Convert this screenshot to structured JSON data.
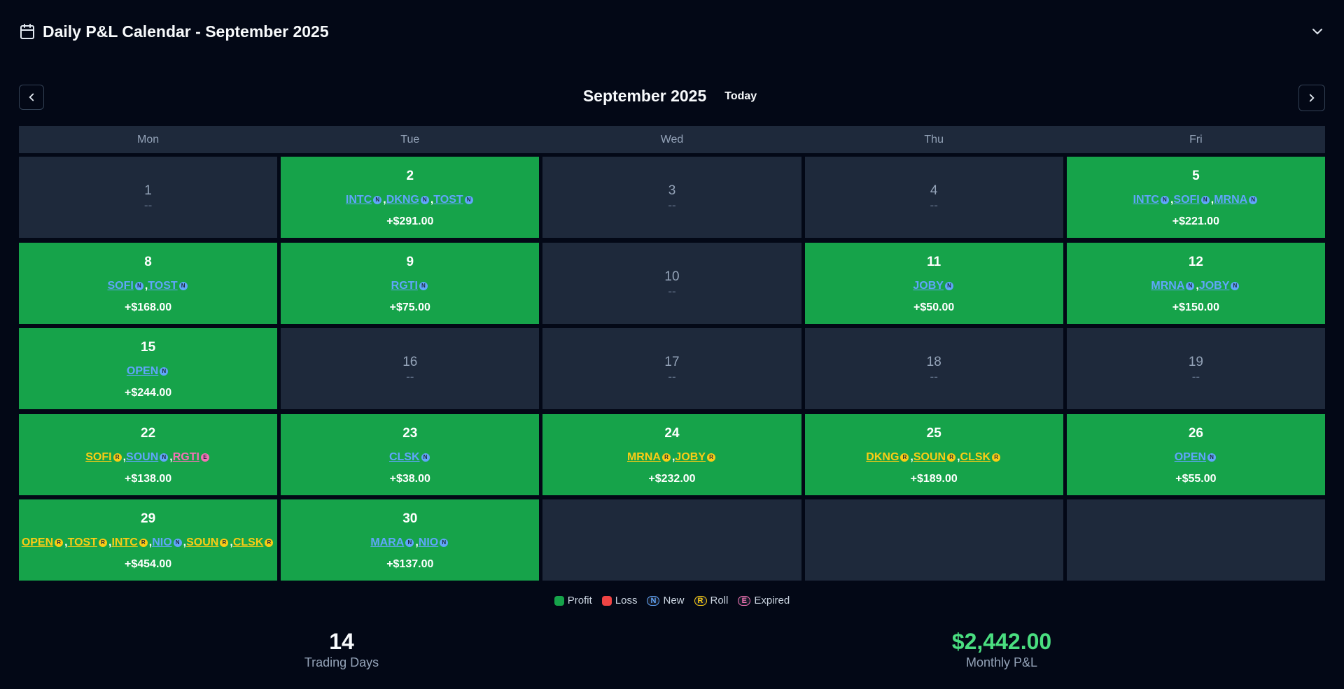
{
  "header": {
    "title": "Daily P&L Calendar - September 2025"
  },
  "calendar": {
    "month": "September 2025",
    "today_button": "Today",
    "weekdays": [
      "Mon",
      "Tue",
      "Wed",
      "Thu",
      "Fri"
    ],
    "separator": ",",
    "weeks": [
      {
        "days": [
          {
            "day": 1,
            "pnl": "--"
          },
          {
            "day": 2,
            "tickers": [
              {
                "symbol": "INTC",
                "tag": "N"
              },
              {
                "symbol": "DKNG",
                "tag": "N"
              },
              {
                "symbol": "TOST",
                "tag": "N"
              }
            ],
            "pnl": "+$291.00"
          },
          {
            "day": 3,
            "pnl": "--"
          },
          {
            "day": 4,
            "pnl": "--"
          },
          {
            "day": 5,
            "tickers": [
              {
                "symbol": "INTC",
                "tag": "N"
              },
              {
                "symbol": "SOFI",
                "tag": "N"
              },
              {
                "symbol": "MRNA",
                "tag": "N"
              }
            ],
            "pnl": "+$221.00"
          }
        ]
      },
      {
        "days": [
          {
            "day": 8,
            "tickers": [
              {
                "symbol": "SOFI",
                "tag": "N"
              },
              {
                "symbol": "TOST",
                "tag": "N"
              }
            ],
            "pnl": "+$168.00"
          },
          {
            "day": 9,
            "tickers": [
              {
                "symbol": "RGTI",
                "tag": "N"
              }
            ],
            "pnl": "+$75.00"
          },
          {
            "day": 10,
            "pnl": "--"
          },
          {
            "day": 11,
            "tickers": [
              {
                "symbol": "JOBY",
                "tag": "N"
              }
            ],
            "pnl": "+$50.00"
          },
          {
            "day": 12,
            "tickers": [
              {
                "symbol": "MRNA",
                "tag": "N"
              },
              {
                "symbol": "JOBY",
                "tag": "N"
              }
            ],
            "pnl": "+$150.00"
          }
        ]
      },
      {
        "days": [
          {
            "day": 15,
            "tickers": [
              {
                "symbol": "OPEN",
                "tag": "N"
              }
            ],
            "pnl": "+$244.00"
          },
          {
            "day": 16,
            "pnl": "--"
          },
          {
            "day": 17,
            "pnl": "--"
          },
          {
            "day": 18,
            "pnl": "--"
          },
          {
            "day": 19,
            "pnl": "--"
          }
        ]
      },
      {
        "days": [
          {
            "day": 22,
            "tickers": [
              {
                "symbol": "SOFI",
                "tag": "R"
              },
              {
                "symbol": "SOUN",
                "tag": "N"
              },
              {
                "symbol": "RGTI",
                "tag": "E"
              }
            ],
            "pnl": "+$138.00"
          },
          {
            "day": 23,
            "tickers": [
              {
                "symbol": "CLSK",
                "tag": "N"
              }
            ],
            "pnl": "+$38.00"
          },
          {
            "day": 24,
            "tickers": [
              {
                "symbol": "MRNA",
                "tag": "R"
              },
              {
                "symbol": "JOBY",
                "tag": "R"
              }
            ],
            "pnl": "+$232.00"
          },
          {
            "day": 25,
            "tickers": [
              {
                "symbol": "DKNG",
                "tag": "R"
              },
              {
                "symbol": "SOUN",
                "tag": "R"
              },
              {
                "symbol": "CLSK",
                "tag": "R"
              }
            ],
            "pnl": "+$189.00"
          },
          {
            "day": 26,
            "tickers": [
              {
                "symbol": "OPEN",
                "tag": "N"
              }
            ],
            "pnl": "+$55.00"
          }
        ]
      },
      {
        "days": [
          {
            "day": 29,
            "tickers": [
              {
                "symbol": "OPEN",
                "tag": "R"
              },
              {
                "symbol": "TOST",
                "tag": "R"
              },
              {
                "symbol": "INTC",
                "tag": "R"
              },
              {
                "symbol": "NIO",
                "tag": "N"
              },
              {
                "symbol": "SOUN",
                "tag": "R"
              },
              {
                "symbol": "CLSK",
                "tag": "R"
              }
            ],
            "pnl": "+$454.00"
          },
          {
            "day": 30,
            "tickers": [
              {
                "symbol": "MARA",
                "tag": "N"
              },
              {
                "symbol": "NIO",
                "tag": "N"
              }
            ],
            "pnl": "+$137.00"
          }
        ]
      }
    ]
  },
  "legend": [
    {
      "label": "Profit",
      "color": "#16a34a"
    },
    {
      "label": "Loss",
      "color": "#ef4444"
    },
    {
      "label": "New",
      "badge": "N",
      "color": "#60a5fa"
    },
    {
      "label": "Roll",
      "badge": "R",
      "color": "#facc15"
    },
    {
      "label": "Expired",
      "badge": "E",
      "color": "#f472b6"
    }
  ],
  "stats": [
    {
      "value": "14",
      "label": "Trading Days"
    },
    {
      "value": "$2,442.00",
      "label": "Monthly P&L"
    }
  ]
}
